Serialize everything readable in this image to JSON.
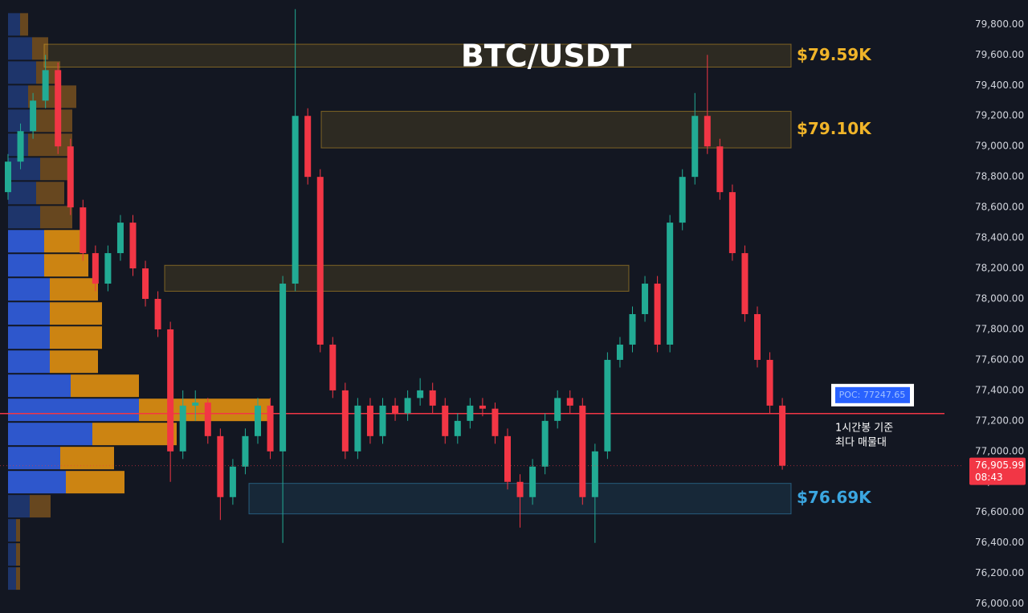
{
  "chart_data": {
    "type": "candlestick",
    "title": "BTC/USDT",
    "ylim": [
      75940,
      79960
    ],
    "yticks": [
      {
        "value": 76000,
        "label": "76,000.00"
      },
      {
        "value": 76200,
        "label": "76,200.00"
      },
      {
        "value": 76400,
        "label": "76,400.00"
      },
      {
        "value": 76600,
        "label": "76,600.00"
      },
      {
        "value": 76800,
        "label": "76,800.00"
      },
      {
        "value": 77000,
        "label": "77,000.00"
      },
      {
        "value": 77200,
        "label": "77,200.00"
      },
      {
        "value": 77400,
        "label": "77,400.00"
      },
      {
        "value": 77600,
        "label": "77,600.00"
      },
      {
        "value": 77800,
        "label": "77,800.00"
      },
      {
        "value": 78000,
        "label": "78,000.00"
      },
      {
        "value": 78200,
        "label": "78,200.00"
      },
      {
        "value": 78400,
        "label": "78,400.00"
      },
      {
        "value": 78600,
        "label": "78,600.00"
      },
      {
        "value": 78800,
        "label": "78,800.00"
      },
      {
        "value": 79000,
        "label": "79,000.00"
      },
      {
        "value": 79200,
        "label": "79,200.00"
      },
      {
        "value": 79400,
        "label": "79,400.00"
      },
      {
        "value": 79600,
        "label": "79,600.00"
      },
      {
        "value": 79800,
        "label": "79,800.00"
      }
    ],
    "up_color": "#22ab94",
    "down_color": "#f23645",
    "candles": [
      [
        78700,
        78950,
        78650,
        78900
      ],
      [
        78900,
        79150,
        78850,
        79100
      ],
      [
        79100,
        79350,
        79050,
        79300
      ],
      [
        79300,
        79600,
        79250,
        79500
      ],
      [
        79500,
        79550,
        78950,
        79000
      ],
      [
        79000,
        79050,
        78550,
        78600
      ],
      [
        78600,
        78650,
        78250,
        78300
      ],
      [
        78300,
        78350,
        78050,
        78100
      ],
      [
        78100,
        78350,
        78050,
        78300
      ],
      [
        78300,
        78550,
        78250,
        78500
      ],
      [
        78500,
        78550,
        78150,
        78200
      ],
      [
        78200,
        78250,
        77950,
        78000
      ],
      [
        78000,
        78050,
        77750,
        77800
      ],
      [
        77800,
        77850,
        76800,
        77000
      ],
      [
        77000,
        77400,
        76950,
        77300
      ],
      [
        77300,
        77400,
        77200,
        77320
      ],
      [
        77320,
        77350,
        77050,
        77100
      ],
      [
        77100,
        77150,
        76550,
        76700
      ],
      [
        76700,
        76950,
        76650,
        76900
      ],
      [
        76900,
        77150,
        76850,
        77100
      ],
      [
        77100,
        77350,
        77050,
        77300
      ],
      [
        77300,
        77350,
        76950,
        77000
      ],
      [
        77000,
        78150,
        76400,
        78100
      ],
      [
        78100,
        79900,
        78050,
        79200
      ],
      [
        79200,
        79250,
        78750,
        78800
      ],
      [
        78800,
        78850,
        77650,
        77700
      ],
      [
        77700,
        77750,
        77350,
        77400
      ],
      [
        77400,
        77450,
        76950,
        77000
      ],
      [
        77000,
        77350,
        76950,
        77300
      ],
      [
        77300,
        77350,
        77050,
        77100
      ],
      [
        77100,
        77350,
        77050,
        77300
      ],
      [
        77300,
        77350,
        77200,
        77250
      ],
      [
        77250,
        77400,
        77200,
        77350
      ],
      [
        77350,
        77480,
        77300,
        77400
      ],
      [
        77400,
        77450,
        77250,
        77300
      ],
      [
        77300,
        77350,
        77050,
        77100
      ],
      [
        77100,
        77250,
        77050,
        77200
      ],
      [
        77200,
        77350,
        77150,
        77300
      ],
      [
        77300,
        77350,
        77230,
        77280
      ],
      [
        77280,
        77320,
        77050,
        77100
      ],
      [
        77100,
        77150,
        76750,
        76800
      ],
      [
        76800,
        76850,
        76500,
        76700
      ],
      [
        76700,
        76950,
        76650,
        76900
      ],
      [
        76900,
        77250,
        76850,
        77200
      ],
      [
        77200,
        77400,
        77150,
        77350
      ],
      [
        77350,
        77400,
        77250,
        77300
      ],
      [
        77300,
        77350,
        76650,
        76700
      ],
      [
        76700,
        77050,
        76400,
        77000
      ],
      [
        77000,
        77650,
        76950,
        77600
      ],
      [
        77600,
        77750,
        77550,
        77700
      ],
      [
        77700,
        77950,
        77650,
        77900
      ],
      [
        77900,
        78150,
        77850,
        78100
      ],
      [
        78100,
        78150,
        77650,
        77700
      ],
      [
        77700,
        78550,
        77650,
        78500
      ],
      [
        78500,
        78850,
        78450,
        78800
      ],
      [
        78800,
        79350,
        78750,
        79200
      ],
      [
        79200,
        79600,
        78950,
        79000
      ],
      [
        79000,
        79050,
        78650,
        78700
      ],
      [
        78700,
        78750,
        78250,
        78300
      ],
      [
        78300,
        78350,
        77850,
        77900
      ],
      [
        77900,
        77950,
        77550,
        77600
      ],
      [
        77600,
        77650,
        77250,
        77300
      ],
      [
        77300,
        77350,
        76880,
        76905.99
      ]
    ],
    "volume_profile": {
      "levels": [
        79800,
        79642,
        79484,
        79326,
        79168,
        79010,
        78852,
        78694,
        78536,
        78378,
        78220,
        78062,
        77904,
        77746,
        77588,
        77430,
        77272,
        77114,
        76956,
        76798,
        76640,
        76482,
        76324,
        76166
      ],
      "value_area": [
        76700,
        78450
      ],
      "series": [
        {
          "color": "#2f5bd6",
          "dim_color": "#1f3770",
          "values": [
            15,
            30,
            35,
            25,
            30,
            25,
            40,
            35,
            40,
            45,
            45,
            52,
            52,
            52,
            52,
            78,
            163,
            105,
            65,
            72,
            27,
            10,
            10,
            10
          ]
        },
        {
          "color": "#d68a12",
          "dim_color": "#6b4a20",
          "values": [
            10,
            20,
            30,
            60,
            50,
            55,
            35,
            35,
            40,
            48,
            55,
            60,
            65,
            65,
            60,
            85,
            163,
            105,
            67,
            73,
            26,
            5,
            5,
            5
          ]
        }
      ]
    },
    "zones": [
      {
        "label": "$79.59K",
        "low": 79520,
        "high": 79670,
        "color": "#f0b429"
      },
      {
        "label": "$79.10K",
        "low": 78990,
        "high": 79230,
        "color": "#f0b429"
      },
      {
        "low": 78050,
        "high": 78220,
        "color": "#f0b429"
      },
      {
        "label": "$76.69K",
        "low": 76590,
        "high": 76790,
        "color": "#3ba6e0"
      }
    ],
    "poc": {
      "label": "POC: 77247.65",
      "value": 77247.65,
      "note": [
        "1시간봉 기준",
        "최다 매물대"
      ]
    },
    "last_price": {
      "value": 76905.99,
      "label": "76,905.99",
      "countdown": "08:43"
    }
  }
}
